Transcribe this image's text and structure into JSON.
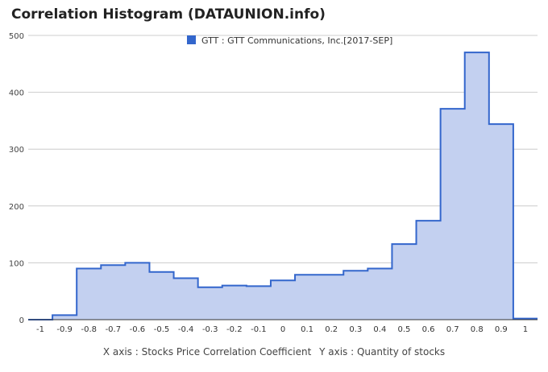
{
  "title": "Correlation Histogram (DATAUNION.info)",
  "x_axis_caption": "X axis : Stocks Price Correlation Coefficient",
  "y_axis_caption": "Y axis : Quantity of stocks",
  "chart_data": {
    "type": "area",
    "step": true,
    "series": [
      {
        "name": "GTT : GTT Communications, Inc.[2017-SEP]",
        "color": "#3366cc",
        "fill": "#c3d0f0",
        "x": [
          -1.0,
          -0.9,
          -0.8,
          -0.7,
          -0.6,
          -0.5,
          -0.4,
          -0.3,
          -0.2,
          -0.1,
          0.0,
          0.1,
          0.2,
          0.3,
          0.4,
          0.5,
          0.6,
          0.7,
          0.8,
          0.9,
          1.0
        ],
        "values": [
          0,
          8,
          90,
          96,
          100,
          84,
          73,
          57,
          60,
          59,
          69,
          79,
          79,
          86,
          90,
          133,
          174,
          371,
          470,
          344,
          2
        ]
      }
    ],
    "xticks": [
      -1,
      -0.9,
      -0.8,
      -0.7,
      -0.6,
      -0.5,
      -0.4,
      -0.3,
      -0.2,
      -0.1,
      0,
      0.1,
      0.2,
      0.3,
      0.4,
      0.5,
      0.6,
      0.7,
      0.8,
      0.9,
      1
    ],
    "yticks": [
      0,
      100,
      200,
      300,
      400,
      500
    ],
    "xlim": [
      -1.05,
      1.05
    ],
    "ylim": [
      0,
      500
    ],
    "grid": true,
    "legend_position": "top-center"
  }
}
